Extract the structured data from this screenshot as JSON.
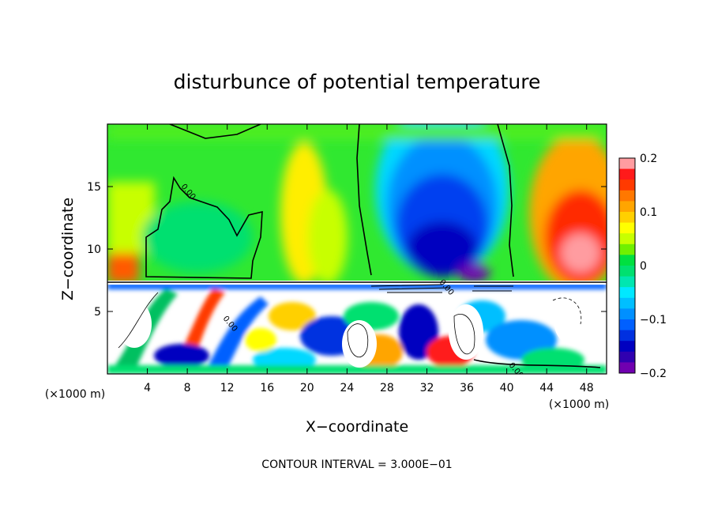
{
  "chart_data": {
    "type": "heatmap",
    "title": "disturbunce of potential temperature",
    "xlabel": "X−coordinate",
    "ylabel": "Z−coordinate",
    "x_unit_label": "(×1000 m)",
    "y_unit_label": "(×1000 m)",
    "xlim": [
      0,
      50
    ],
    "ylim": [
      0,
      20
    ],
    "x_ticks": [
      4,
      8,
      12,
      16,
      20,
      24,
      28,
      32,
      36,
      40,
      44,
      48
    ],
    "y_ticks": [
      5,
      10,
      15
    ],
    "colorbar": {
      "ticks": [
        "0.2",
        "0.1",
        "0",
        "−0.1",
        "−0.2"
      ],
      "range": [
        -0.2,
        0.2
      ],
      "colors": [
        "#ff9ca0",
        "#ff1a1a",
        "#ff3a00",
        "#ff7800",
        "#ffa500",
        "#ffd000",
        "#ffff00",
        "#c8ff00",
        "#70f000",
        "#00e040",
        "#00e070",
        "#00e6b0",
        "#00e8ff",
        "#00bfff",
        "#0090ff",
        "#0060ff",
        "#0030e0",
        "#0000c0",
        "#3000b0",
        "#7000b0"
      ]
    },
    "layer_boundary_z": 7.4,
    "regions": [
      {
        "name": "upper-left-warm",
        "x": [
          0,
          4
        ],
        "z": [
          8,
          12
        ],
        "value": 0.15
      },
      {
        "name": "upper-left-green",
        "x": [
          3,
          17
        ],
        "z": [
          8,
          16
        ],
        "value": 0.02
      },
      {
        "name": "upper-mid-yellow",
        "x": [
          14,
          26
        ],
        "z": [
          8,
          20
        ],
        "value": 0.06
      },
      {
        "name": "cold-plume",
        "x": [
          27,
          40
        ],
        "z": [
          7.5,
          19.5
        ],
        "value": -0.2
      },
      {
        "name": "warm-right",
        "x": [
          41,
          50
        ],
        "z": [
          8,
          18
        ],
        "value": 0.19
      },
      {
        "name": "lower-turbulent",
        "x": [
          0,
          50
        ],
        "z": [
          0,
          7.3
        ],
        "value": 0.0
      }
    ],
    "contour_interval_text": "CONTOUR INTERVAL = 3.000E−01",
    "contour_labels": [
      "0.00",
      "0.00",
      "0.00",
      "0.00"
    ],
    "grid": false,
    "legend": "colorbar-right"
  }
}
